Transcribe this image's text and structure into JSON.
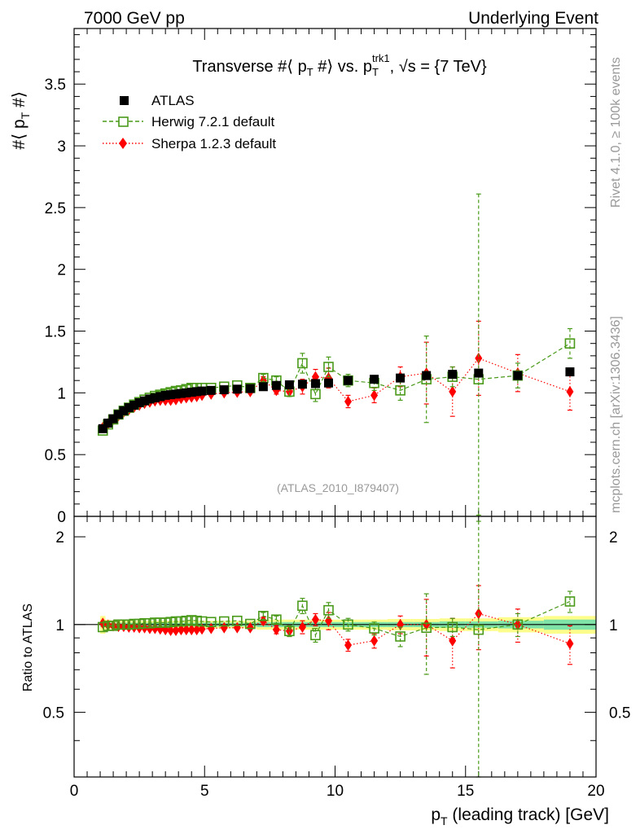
{
  "header": {
    "left": "7000 GeV pp",
    "right": "Underlying Event"
  },
  "side_labels": {
    "rivet": "Rivet 4.1.0, ≥ 100k events",
    "mcplots": "mcplots.cern.ch [arXiv:1306.3436]"
  },
  "colors": {
    "atlas": "#000000",
    "herwig": "#4a9a1a",
    "sherpa": "#ff0000",
    "band_inner": "#7fe3a8",
    "band_outer": "#fdfd8c",
    "annotation": "#999999"
  },
  "chart_data": [
    {
      "type": "scatter",
      "title": {
        "part1": "Transverse #⟨ p",
        "sub1": "T",
        "part2": " #⟩ vs. p",
        "sub2": "T",
        "sup2": "trk1",
        "part3": ", √s = {7 TeV}"
      },
      "ylabel": {
        "main": "#⟨ p",
        "sub": "T",
        "tail": " #⟩"
      },
      "annotation": "(ATLAS_2010_I879407)",
      "xlim": [
        0,
        20
      ],
      "ylim": [
        0,
        3.95
      ],
      "yticks": [
        "0",
        "0.5",
        "1",
        "1.5",
        "2",
        "2.5",
        "3",
        "3.5"
      ],
      "legend_position": "top-left",
      "legend": [
        "ATLAS",
        "Herwig 7.2.1 default",
        "Sherpa 1.2.3 default"
      ],
      "x": [
        1.1,
        1.3,
        1.5,
        1.7,
        1.9,
        2.1,
        2.3,
        2.5,
        2.7,
        2.9,
        3.1,
        3.3,
        3.5,
        3.7,
        3.9,
        4.1,
        4.3,
        4.5,
        4.7,
        4.9,
        5.25,
        5.75,
        6.25,
        6.75,
        7.25,
        7.75,
        8.25,
        8.75,
        9.25,
        9.75,
        10.5,
        11.5,
        12.5,
        13.5,
        14.5,
        15.5,
        17.0,
        19.0
      ],
      "series": [
        {
          "name": "ATLAS",
          "values": [
            0.71,
            0.755,
            0.79,
            0.825,
            0.855,
            0.88,
            0.9,
            0.92,
            0.935,
            0.95,
            0.96,
            0.97,
            0.98,
            0.985,
            0.99,
            0.995,
            1.0,
            1.005,
            1.01,
            1.015,
            1.02,
            1.025,
            1.03,
            1.035,
            1.05,
            1.06,
            1.065,
            1.07,
            1.075,
            1.08,
            1.1,
            1.11,
            1.12,
            1.14,
            1.15,
            1.16,
            1.14,
            1.17
          ]
        },
        {
          "name": "Herwig 7.2.1 default",
          "values": [
            0.695,
            0.745,
            0.785,
            0.825,
            0.855,
            0.88,
            0.905,
            0.925,
            0.945,
            0.96,
            0.975,
            0.985,
            0.995,
            1.005,
            1.015,
            1.02,
            1.03,
            1.04,
            1.04,
            1.04,
            1.04,
            1.05,
            1.06,
            1.04,
            1.12,
            1.1,
            1.01,
            1.24,
            0.99,
            1.21,
            1.1,
            1.08,
            1.02,
            1.11,
            1.13,
            1.11,
            1.14,
            1.4
          ],
          "errors": [
            0.01,
            0.01,
            0.01,
            0.01,
            0.01,
            0.01,
            0.01,
            0.01,
            0.01,
            0.01,
            0.01,
            0.01,
            0.01,
            0.01,
            0.01,
            0.01,
            0.01,
            0.01,
            0.01,
            0.01,
            0.01,
            0.015,
            0.02,
            0.02,
            0.03,
            0.03,
            0.04,
            0.08,
            0.06,
            0.08,
            0.05,
            0.06,
            0.08,
            0.35,
            0.08,
            1.5,
            0.1,
            0.12
          ]
        },
        {
          "name": "Sherpa 1.2.3 default",
          "values": [
            0.72,
            0.75,
            0.785,
            0.815,
            0.845,
            0.865,
            0.885,
            0.9,
            0.915,
            0.925,
            0.935,
            0.94,
            0.94,
            0.94,
            0.945,
            0.955,
            0.96,
            0.965,
            0.97,
            0.98,
            0.99,
            1.0,
            1.005,
            1.01,
            1.1,
            1.02,
            1.01,
            1.05,
            1.13,
            1.12,
            0.93,
            0.98,
            1.13,
            1.16,
            1.01,
            1.28,
            1.16,
            1.01
          ],
          "errors": [
            0.01,
            0.01,
            0.01,
            0.01,
            0.01,
            0.01,
            0.01,
            0.01,
            0.01,
            0.01,
            0.01,
            0.01,
            0.01,
            0.01,
            0.01,
            0.01,
            0.01,
            0.01,
            0.01,
            0.01,
            0.01,
            0.015,
            0.02,
            0.02,
            0.03,
            0.03,
            0.04,
            0.06,
            0.06,
            0.08,
            0.05,
            0.06,
            0.08,
            0.25,
            0.2,
            0.3,
            0.15,
            0.15
          ]
        }
      ]
    },
    {
      "type": "scatter",
      "title": "",
      "ylabel": "Ratio to ATLAS",
      "xlabel": {
        "main": "p",
        "sub": "T",
        "tail": " (leading track) [GeV]"
      },
      "xlim": [
        0,
        20
      ],
      "xticks": [
        "0",
        "5",
        "10",
        "15",
        "20"
      ],
      "ylim": [
        0.3,
        2.35
      ],
      "yticks": [
        "0.5",
        "1",
        "2"
      ],
      "band_inner": [
        0.02,
        0.02,
        0.015,
        0.015,
        0.015,
        0.015,
        0.015,
        0.015,
        0.015,
        0.015,
        0.015,
        0.015,
        0.015,
        0.015,
        0.015,
        0.015,
        0.015,
        0.015,
        0.015,
        0.015,
        0.015,
        0.015,
        0.015,
        0.015,
        0.02,
        0.02,
        0.02,
        0.02,
        0.02,
        0.02,
        0.02,
        0.02,
        0.02,
        0.02,
        0.025,
        0.025,
        0.03,
        0.04
      ],
      "band_outer": [
        0.07,
        0.04,
        0.03,
        0.03,
        0.03,
        0.03,
        0.03,
        0.03,
        0.03,
        0.03,
        0.03,
        0.03,
        0.03,
        0.03,
        0.03,
        0.03,
        0.03,
        0.03,
        0.03,
        0.03,
        0.03,
        0.03,
        0.03,
        0.03,
        0.04,
        0.04,
        0.04,
        0.04,
        0.04,
        0.04,
        0.04,
        0.04,
        0.045,
        0.045,
        0.05,
        0.05,
        0.06,
        0.07
      ],
      "series": [
        {
          "name": "Herwig 7.2.1 default",
          "values": [
            0.98,
            0.99,
            0.99,
            1.0,
            1.0,
            1.0,
            1.005,
            1.005,
            1.01,
            1.01,
            1.015,
            1.015,
            1.015,
            1.02,
            1.025,
            1.025,
            1.03,
            1.035,
            1.03,
            1.025,
            1.02,
            1.025,
            1.03,
            1.005,
            1.07,
            1.04,
            0.95,
            1.16,
            0.92,
            1.12,
            1.0,
            0.97,
            0.91,
            0.975,
            0.98,
            0.96,
            1.0,
            1.2
          ],
          "errors": [
            0.01,
            0.01,
            0.01,
            0.01,
            0.01,
            0.01,
            0.01,
            0.01,
            0.01,
            0.01,
            0.01,
            0.01,
            0.01,
            0.01,
            0.01,
            0.01,
            0.01,
            0.01,
            0.01,
            0.01,
            0.01,
            0.015,
            0.02,
            0.02,
            0.03,
            0.03,
            0.04,
            0.07,
            0.05,
            0.07,
            0.05,
            0.05,
            0.07,
            0.3,
            0.07,
            1.3,
            0.09,
            0.1
          ]
        },
        {
          "name": "Sherpa 1.2.3 default",
          "values": [
            1.01,
            0.995,
            0.99,
            0.985,
            0.985,
            0.98,
            0.98,
            0.975,
            0.975,
            0.97,
            0.97,
            0.965,
            0.96,
            0.955,
            0.955,
            0.96,
            0.96,
            0.96,
            0.96,
            0.965,
            0.97,
            0.975,
            0.975,
            0.975,
            1.03,
            0.96,
            0.95,
            0.98,
            1.04,
            1.03,
            0.85,
            0.88,
            1.0,
            1.0,
            0.88,
            1.09,
            1.0,
            0.86
          ],
          "errors": [
            0.01,
            0.01,
            0.01,
            0.01,
            0.01,
            0.01,
            0.01,
            0.01,
            0.01,
            0.01,
            0.01,
            0.01,
            0.01,
            0.01,
            0.01,
            0.01,
            0.01,
            0.01,
            0.01,
            0.01,
            0.01,
            0.015,
            0.02,
            0.02,
            0.03,
            0.03,
            0.04,
            0.05,
            0.05,
            0.07,
            0.04,
            0.05,
            0.07,
            0.22,
            0.17,
            0.27,
            0.13,
            0.13
          ]
        }
      ]
    }
  ]
}
